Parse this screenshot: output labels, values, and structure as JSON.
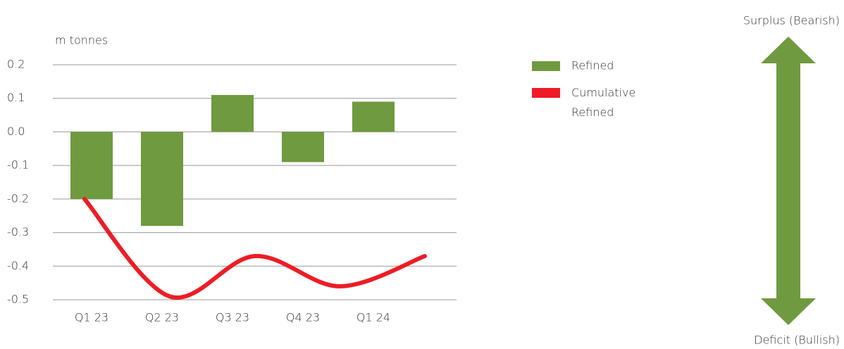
{
  "chart_data": {
    "type": "bar",
    "y_axis_label": "m tonnes",
    "categories": [
      "Q1 23",
      "Q2 23",
      "Q3 23",
      "Q4 23",
      "Q1 24"
    ],
    "series": [
      {
        "name": "Refined",
        "color": "#6f9a3f",
        "type": "bar",
        "values": [
          -0.2,
          -0.28,
          0.11,
          -0.09,
          0.09
        ]
      },
      {
        "name": "Cumulative Refined",
        "color": "#ee1c25",
        "type": "line",
        "values": [
          -0.2,
          -0.49,
          -0.37,
          -0.46,
          -0.37
        ]
      }
    ],
    "ylim": [
      -0.5,
      0.2
    ],
    "yticks": [
      0.2,
      0.1,
      {
        "value": 0,
        "label": "0.0"
      },
      -0.1,
      -0.2,
      -0.3,
      -0.4,
      -0.5
    ],
    "grid": true,
    "legend": "right",
    "annotations": {
      "top": "Surplus (Bearish)",
      "bottom": "Deficit (Bullish)"
    }
  }
}
